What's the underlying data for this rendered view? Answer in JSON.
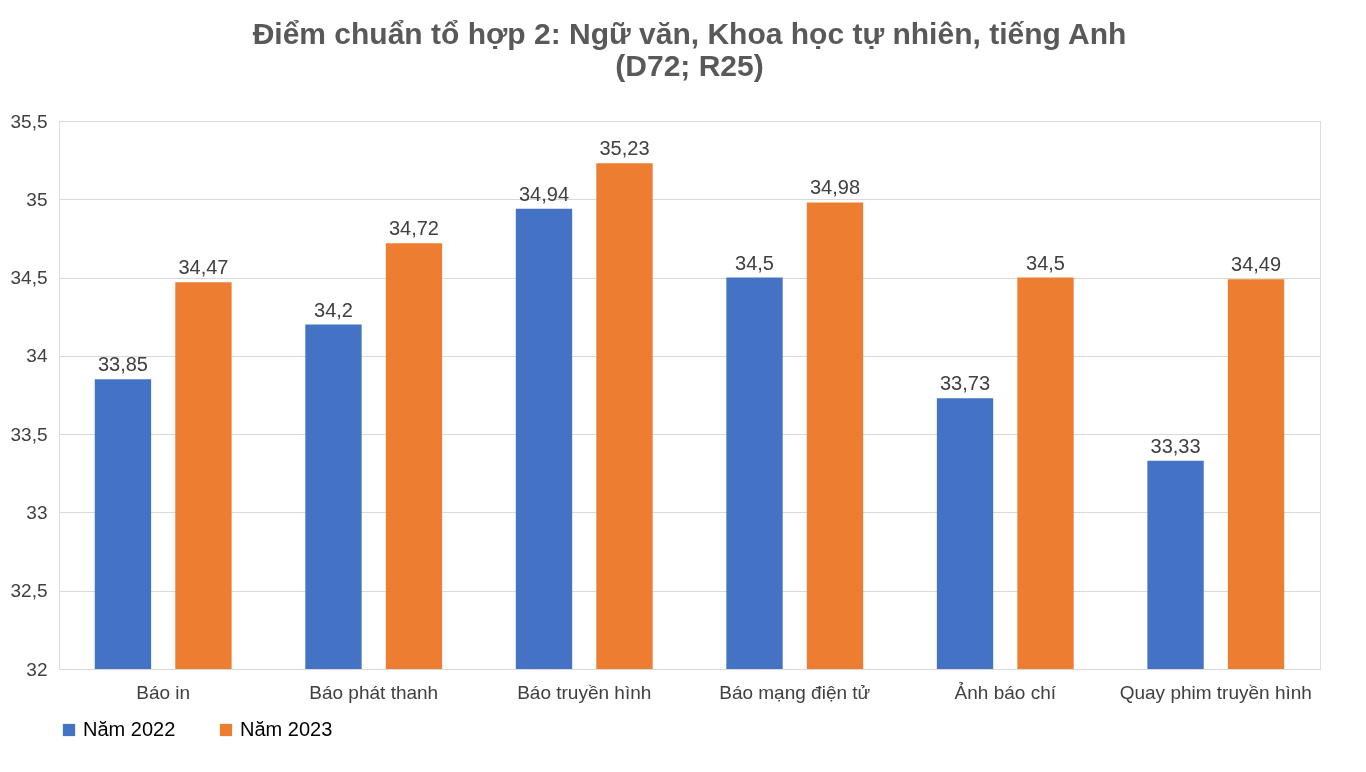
{
  "chart_data": {
    "type": "bar",
    "title": "Điểm chuẩn tổ hợp 2: Ngữ văn, Khoa học tự nhiên, tiếng Anh\n(D72; R25)",
    "categories": [
      "Báo in",
      "Báo phát thanh",
      "Báo truyền hình",
      "Báo mạng điện tử",
      "Ảnh báo chí",
      "Quay phim truyền hình"
    ],
    "series": [
      {
        "name": "Năm 2022",
        "color": "#4472c4",
        "values": [
          33.85,
          34.2,
          34.94,
          34.5,
          33.73,
          33.33
        ],
        "value_labels": [
          "33,85",
          "34,2",
          "34,94",
          "34,5",
          "33,73",
          "33,33"
        ]
      },
      {
        "name": "Năm 2023",
        "color": "#ed7d31",
        "values": [
          34.47,
          34.72,
          35.23,
          34.98,
          34.5,
          34.49
        ],
        "value_labels": [
          "34,47",
          "34,72",
          "35,23",
          "34,98",
          "34,5",
          "34,49"
        ]
      }
    ],
    "ylim": [
      32,
      35.5
    ],
    "yticks": [
      32,
      {
        "value": 32.5,
        "label": "32,5"
      },
      33,
      {
        "value": 33.5,
        "label": "33,5"
      },
      34,
      {
        "value": 34.5,
        "label": "34,5"
      },
      35,
      {
        "value": 35.5,
        "label": "35,5"
      }
    ],
    "grid": "y",
    "legend": "bottom"
  }
}
